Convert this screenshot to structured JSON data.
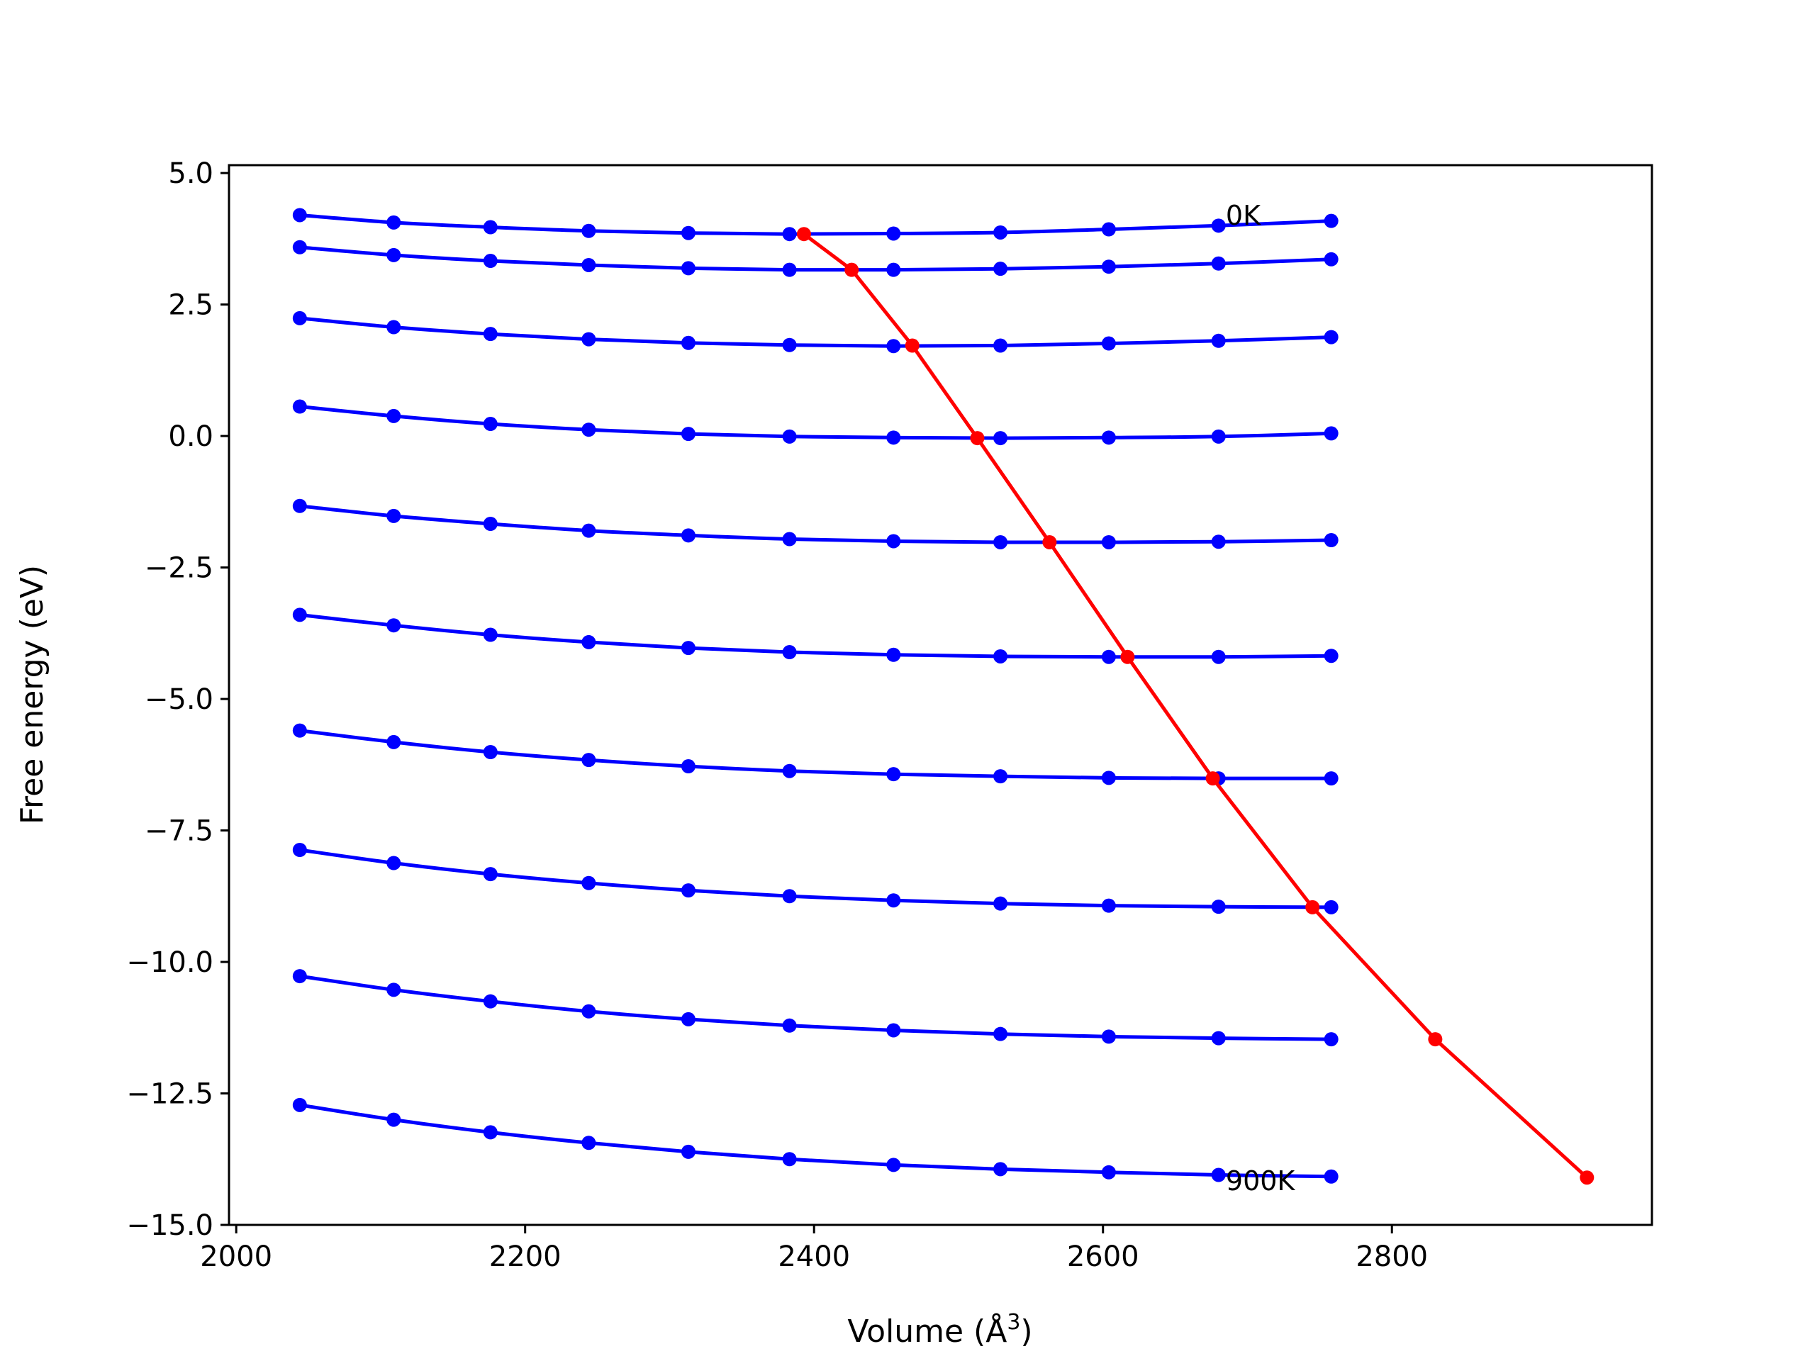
{
  "chart_data": {
    "type": "line",
    "title": "",
    "xlabel": "Volume (Å",
    "xlabel_sup": "3",
    "xlabel_tail": ")",
    "ylabel": "Free energy (eV)",
    "xlim": [
      1995,
      2980
    ],
    "ylim": [
      -15.0,
      5.15
    ],
    "xticks": [
      2000,
      2200,
      2400,
      2600,
      2800
    ],
    "xtick_labels": [
      "2000",
      "2200",
      "2400",
      "2600",
      "2800"
    ],
    "yticks": [
      5.0,
      2.5,
      0.0,
      -2.5,
      -5.0,
      -7.5,
      -10.0,
      -12.5,
      -15.0
    ],
    "ytick_labels": [
      "5.0",
      "2.5",
      "0.0",
      "−2.5",
      "−5.0",
      "−7.5",
      "−10.0",
      "−12.5",
      "−15.0"
    ],
    "grid": false,
    "legend": "none",
    "x": [
      2044,
      2109,
      2176,
      2244,
      2313,
      2383,
      2455,
      2529,
      2604,
      2680,
      2758
    ],
    "series": [
      {
        "color": "#0000ff",
        "values": [
          4.2,
          4.06,
          3.97,
          3.9,
          3.86,
          3.84,
          3.85,
          3.87,
          3.93,
          4.0,
          4.09
        ]
      },
      {
        "color": "#0000ff",
        "values": [
          3.59,
          3.44,
          3.33,
          3.25,
          3.19,
          3.16,
          3.16,
          3.18,
          3.22,
          3.28,
          3.36
        ]
      },
      {
        "color": "#0000ff",
        "values": [
          2.24,
          2.07,
          1.94,
          1.84,
          1.77,
          1.73,
          1.71,
          1.72,
          1.76,
          1.81,
          1.88
        ]
      },
      {
        "color": "#0000ff",
        "values": [
          0.56,
          0.38,
          0.23,
          0.12,
          0.04,
          -0.01,
          -0.03,
          -0.04,
          -0.03,
          -0.01,
          0.05
        ]
      },
      {
        "color": "#0000ff",
        "values": [
          -1.33,
          -1.52,
          -1.67,
          -1.8,
          -1.89,
          -1.96,
          -2.0,
          -2.02,
          -2.02,
          -2.01,
          -1.98
        ]
      },
      {
        "color": "#0000ff",
        "values": [
          -3.4,
          -3.6,
          -3.78,
          -3.92,
          -4.03,
          -4.11,
          -4.16,
          -4.19,
          -4.2,
          -4.2,
          -4.18
        ]
      },
      {
        "color": "#0000ff",
        "values": [
          -5.6,
          -5.82,
          -6.01,
          -6.16,
          -6.28,
          -6.37,
          -6.43,
          -6.47,
          -6.5,
          -6.51,
          -6.51
        ]
      },
      {
        "color": "#0000ff",
        "values": [
          -7.87,
          -8.12,
          -8.33,
          -8.5,
          -8.64,
          -8.75,
          -8.83,
          -8.89,
          -8.93,
          -8.95,
          -8.96
        ]
      },
      {
        "color": "#0000ff",
        "values": [
          -10.27,
          -10.53,
          -10.75,
          -10.94,
          -11.09,
          -11.21,
          -11.3,
          -11.37,
          -11.42,
          -11.45,
          -11.47
        ]
      },
      {
        "color": "#0000ff",
        "values": [
          -12.72,
          -13.0,
          -13.24,
          -13.44,
          -13.61,
          -13.75,
          -13.86,
          -13.94,
          -14.0,
          -14.05,
          -14.08
        ]
      }
    ],
    "minima": {
      "color": "#ff0000",
      "x": [
        2393,
        2426,
        2468,
        2513,
        2563,
        2617,
        2676,
        2745,
        2830,
        2935
      ],
      "y": [
        3.84,
        3.16,
        1.72,
        -0.04,
        -2.02,
        -4.2,
        -6.51,
        -8.96,
        -11.47,
        -14.1
      ]
    },
    "annotations": [
      {
        "text": "0K",
        "x": 2685,
        "y": 4.18
      },
      {
        "text": "900K",
        "x": 2685,
        "y": -14.18
      }
    ]
  }
}
